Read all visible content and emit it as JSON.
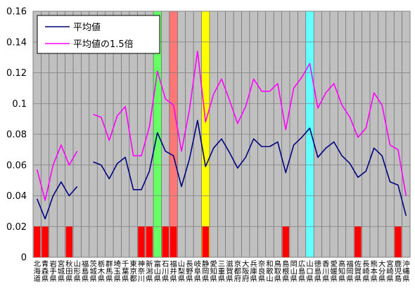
{
  "chart_data": {
    "type": "line",
    "ylim": [
      0,
      0.16
    ],
    "y_ticks": [
      "0",
      "0.02",
      "0.04",
      "0.06",
      "0.08",
      "0.1",
      "0.12",
      "0.14",
      "0.16"
    ],
    "categories": [
      "北海道",
      "青森県",
      "岩手県",
      "宮城県",
      "秋田県",
      "山形県",
      "福島県",
      "茨城県",
      "栃木県",
      "群馬県",
      "埼玉県",
      "千葉県",
      "東京都",
      "神奈川",
      "新潟県",
      "富山県",
      "石川県",
      "福井県",
      "山梨県",
      "長野県",
      "岐阜県",
      "静岡県",
      "愛知県",
      "三重県",
      "滋賀県",
      "京都府",
      "大阪府",
      "兵庫県",
      "奈良県",
      "和歌山",
      "鳥取県",
      "島根県",
      "岡山県",
      "広島県",
      "山口県",
      "徳島県",
      "香川県",
      "愛媛県",
      "高知県",
      "福岡県",
      "佐賀県",
      "長崎県",
      "熊本県",
      "大分県",
      "宮崎県",
      "鹿児島",
      "沖縄県"
    ],
    "series": [
      {
        "name": "平均値",
        "color": "#000080",
        "values": [
          0.038,
          0.025,
          0.04,
          0.049,
          0.04,
          0.046,
          null,
          0.062,
          0.06,
          0.051,
          0.061,
          0.065,
          0.044,
          0.044,
          0.056,
          0.081,
          0.069,
          0.066,
          0.046,
          0.064,
          0.089,
          0.059,
          0.071,
          0.077,
          0.068,
          0.058,
          0.065,
          0.077,
          0.072,
          0.072,
          0.075,
          0.055,
          0.073,
          0.078,
          0.084,
          0.065,
          0.071,
          0.075,
          0.066,
          0.061,
          0.052,
          0.056,
          0.071,
          0.066,
          0.049,
          0.047,
          0.027
        ]
      },
      {
        "name": "平均値の1.5倍",
        "color": "#ff00ff",
        "values": [
          0.057,
          0.037,
          0.06,
          0.073,
          0.06,
          0.069,
          null,
          0.093,
          0.091,
          0.076,
          0.092,
          0.098,
          0.066,
          0.066,
          0.085,
          0.121,
          0.103,
          0.099,
          0.069,
          0.096,
          0.134,
          0.088,
          0.106,
          0.116,
          0.102,
          0.087,
          0.098,
          0.116,
          0.108,
          0.108,
          0.113,
          0.083,
          0.11,
          0.117,
          0.126,
          0.097,
          0.107,
          0.113,
          0.099,
          0.091,
          0.078,
          0.084,
          0.107,
          0.099,
          0.073,
          0.07,
          0.04
        ]
      }
    ],
    "red_marker_value": 0.02,
    "red_markers": [
      "北海道",
      "青森県",
      "秋田県",
      "神奈川",
      "新潟県",
      "石川県",
      "福井県",
      "静岡県",
      "島根県",
      "佐賀県",
      "鹿児島"
    ],
    "highlight_columns": [
      {
        "category": "富山県",
        "color": "#66ff66"
      },
      {
        "category": "福井県",
        "color": "#ff7777"
      },
      {
        "category": "静岡県",
        "color": "#ffff00"
      },
      {
        "category": "山口県",
        "color": "#66ffff"
      }
    ],
    "legend_position": "top-left",
    "plot_background": "#c0c0c0",
    "grid_color": "#808080"
  }
}
